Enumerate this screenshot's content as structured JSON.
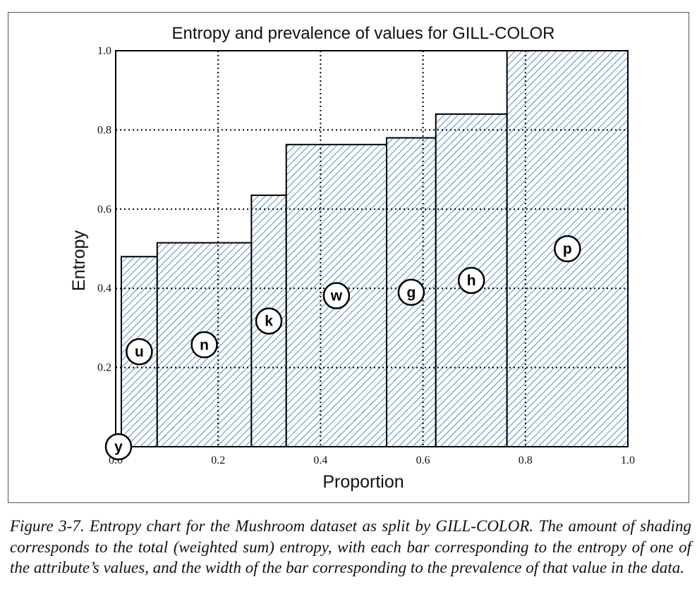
{
  "chart_data": {
    "type": "bar",
    "variable_width": true,
    "title": "Entropy and prevalence of values for GILL-COLOR",
    "xlabel": "Proportion",
    "ylabel": "Entropy",
    "xlim": [
      0.0,
      1.0
    ],
    "ylim": [
      0.0,
      1.0
    ],
    "xticks": [
      "0.0",
      "0.2",
      "0.4",
      "0.6",
      "0.8",
      "1.0"
    ],
    "yticks": [
      "0.2",
      "0.4",
      "0.6",
      "0.8",
      "1.0"
    ],
    "grid": true,
    "fill_pattern": "diagonal-hatch",
    "colors": {
      "hatch": "#2c6fb3",
      "hatch_bg": "#ffffff",
      "outline": "#000000",
      "grid": "#000000"
    },
    "bars": [
      {
        "label": "y",
        "x0": 0.0,
        "x1": 0.011,
        "entropy": 0.0
      },
      {
        "label": "u",
        "x0": 0.011,
        "x1": 0.081,
        "entropy": 0.48
      },
      {
        "label": "n",
        "x0": 0.081,
        "x1": 0.265,
        "entropy": 0.515
      },
      {
        "label": "k",
        "x0": 0.265,
        "x1": 0.333,
        "entropy": 0.635
      },
      {
        "label": "w",
        "x0": 0.333,
        "x1": 0.529,
        "entropy": 0.763
      },
      {
        "label": "g",
        "x0": 0.529,
        "x1": 0.625,
        "entropy": 0.78
      },
      {
        "label": "h",
        "x0": 0.625,
        "x1": 0.764,
        "entropy": 0.84
      },
      {
        "label": "p",
        "x0": 0.764,
        "x1": 1.0,
        "entropy": 1.0
      }
    ]
  },
  "caption": {
    "label": "Figure 3-7.",
    "text": "Entropy chart for the Mushroom dataset as split by GILL-COLOR. The amount of shading corresponds to the total (weighted sum) entropy, with each bar corresponding to the entropy of one of the attribute’s values, and the width of the bar corresponding to the prevalence of that value in the data."
  }
}
